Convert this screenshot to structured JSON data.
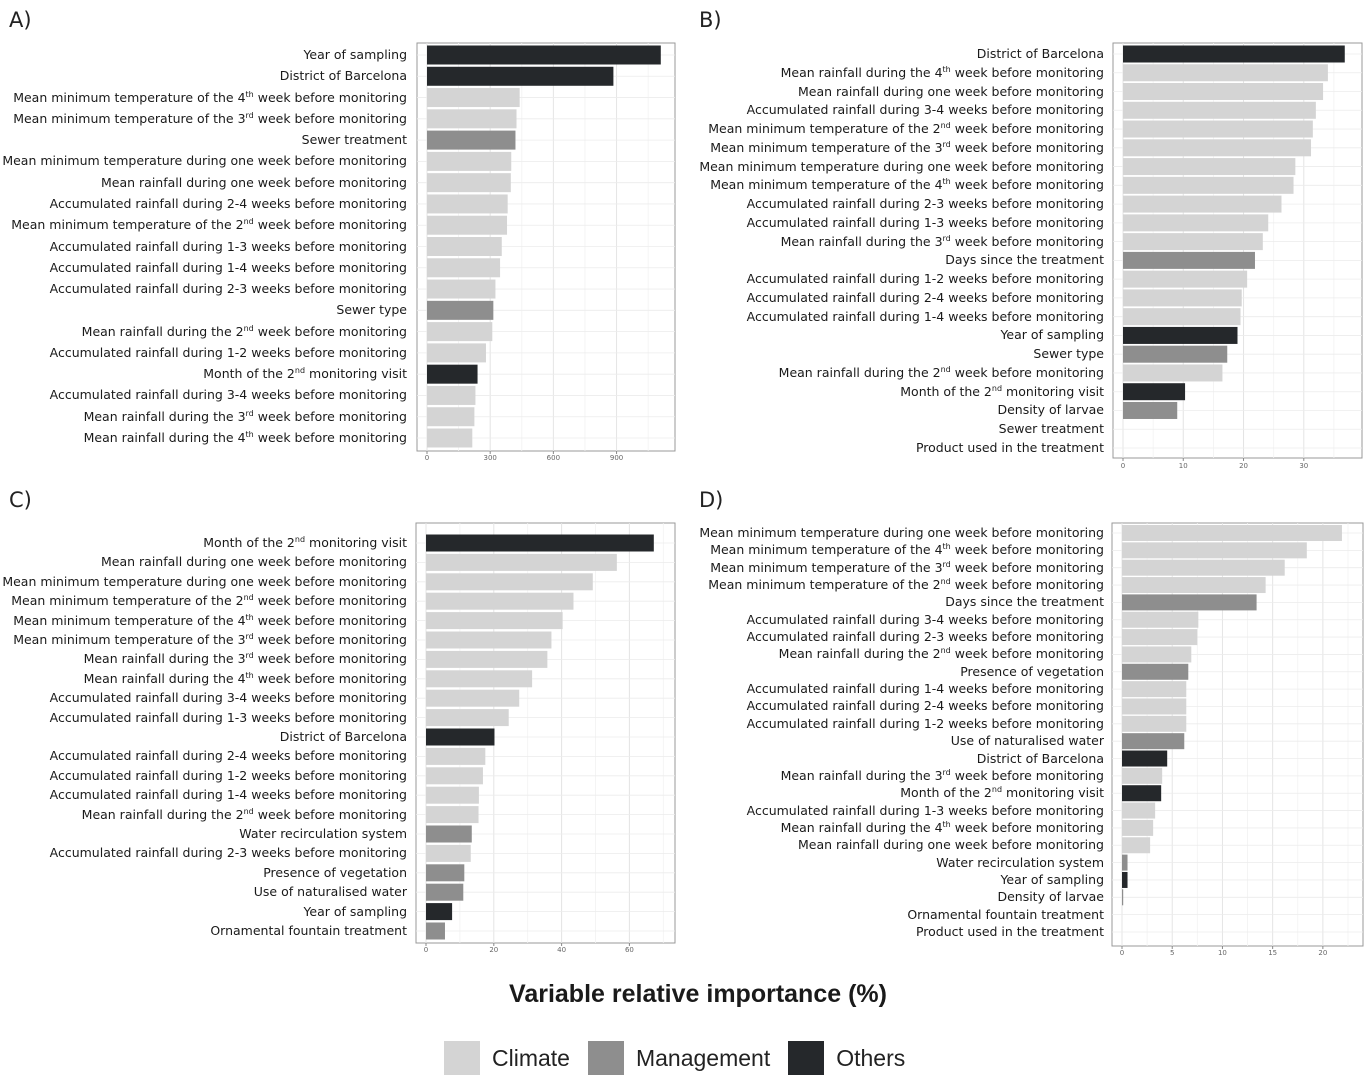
{
  "panels": [
    "A)",
    "B)",
    "C)",
    "D)"
  ],
  "xlabel": "Variable relative importance (%)",
  "legend": [
    {
      "label": "Climate",
      "color": "#d4d4d4"
    },
    {
      "label": "Management",
      "color": "#8e8e8e"
    },
    {
      "label": "Others",
      "color": "#25282b"
    }
  ],
  "chart_data": [
    {
      "type": "bar",
      "orientation": "horizontal",
      "panel": "A)",
      "xlim": [
        0,
        1130
      ],
      "xticks": [
        0,
        300,
        600,
        900
      ],
      "grid": true,
      "bars": [
        {
          "label": "Year of sampling",
          "value": 1110,
          "group": "Others"
        },
        {
          "label": "District of Barcelona",
          "value": 885,
          "group": "Others"
        },
        {
          "label": "Mean minimum temperature of the 4<sup>th</sup> week before monitoring",
          "value": 440,
          "group": "Climate"
        },
        {
          "label": "Mean minimum temperature of the 3<sup>rd</sup> week before monitoring",
          "value": 425,
          "group": "Climate"
        },
        {
          "label": "Sewer treatment",
          "value": 420,
          "group": "Management"
        },
        {
          "label": "Mean minimum temperature during one week before monitoring",
          "value": 400,
          "group": "Climate"
        },
        {
          "label": "Mean rainfall during one week before monitoring",
          "value": 398,
          "group": "Climate"
        },
        {
          "label": "Accumulated rainfall during 2-4 weeks before monitoring",
          "value": 383,
          "group": "Climate"
        },
        {
          "label": "Mean minimum temperature of the 2<sup>nd</sup> week before monitoring",
          "value": 380,
          "group": "Climate"
        },
        {
          "label": "Accumulated rainfall during 1-3 weeks before monitoring",
          "value": 355,
          "group": "Climate"
        },
        {
          "label": "Accumulated rainfall during 1-4 weeks before monitoring",
          "value": 347,
          "group": "Climate"
        },
        {
          "label": "Accumulated rainfall during 2-3 weeks before monitoring",
          "value": 325,
          "group": "Climate"
        },
        {
          "label": "Sewer type",
          "value": 315,
          "group": "Management"
        },
        {
          "label": "Mean rainfall during the 2<sup>nd</sup> week before monitoring",
          "value": 310,
          "group": "Climate"
        },
        {
          "label": "Accumulated rainfall during 1-2 weeks before monitoring",
          "value": 280,
          "group": "Climate"
        },
        {
          "label": "Month of the 2<sup>nd</sup> monitoring visit",
          "value": 240,
          "group": "Others"
        },
        {
          "label": "Accumulated rainfall during 3-4 weeks before monitoring",
          "value": 230,
          "group": "Climate"
        },
        {
          "label": "Mean rainfall during the 3<sup>rd</sup> week before monitoring",
          "value": 225,
          "group": "Climate"
        },
        {
          "label": "Mean rainfall during the 4<sup>th</sup> week before monitoring",
          "value": 215,
          "group": "Climate"
        }
      ]
    },
    {
      "type": "bar",
      "orientation": "horizontal",
      "panel": "B)",
      "xlim": [
        0,
        38
      ],
      "xticks": [
        0,
        10,
        20,
        30
      ],
      "grid": true,
      "bars": [
        {
          "label": "District of Barcelona",
          "value": 36.8,
          "group": "Others"
        },
        {
          "label": "Mean rainfall during the 4<sup>th</sup> week before monitoring",
          "value": 34.0,
          "group": "Climate"
        },
        {
          "label": "Mean rainfall during one week before monitoring",
          "value": 33.2,
          "group": "Climate"
        },
        {
          "label": "Accumulated rainfall during 3-4 weeks before monitoring",
          "value": 32.0,
          "group": "Climate"
        },
        {
          "label": "Mean minimum temperature of the 2<sup>nd</sup> week before monitoring",
          "value": 31.5,
          "group": "Climate"
        },
        {
          "label": "Mean minimum temperature of the 3<sup>rd</sup> week before monitoring",
          "value": 31.2,
          "group": "Climate"
        },
        {
          "label": "Mean minimum temperature during one week before monitoring",
          "value": 28.6,
          "group": "Climate"
        },
        {
          "label": "Mean minimum temperature of the 4<sup>th</sup> week before monitoring",
          "value": 28.3,
          "group": "Climate"
        },
        {
          "label": "Accumulated rainfall during 2-3 weeks before monitoring",
          "value": 26.3,
          "group": "Climate"
        },
        {
          "label": "Accumulated rainfall during 1-3 weeks before monitoring",
          "value": 24.1,
          "group": "Climate"
        },
        {
          "label": "Mean rainfall during the 3<sup>rd</sup> week before monitoring",
          "value": 23.2,
          "group": "Climate"
        },
        {
          "label": "Days since the treatment",
          "value": 21.9,
          "group": "Management"
        },
        {
          "label": "Accumulated rainfall during 1-2 weeks before monitoring",
          "value": 20.6,
          "group": "Climate"
        },
        {
          "label": "Accumulated rainfall during 2-4 weeks before monitoring",
          "value": 19.7,
          "group": "Climate"
        },
        {
          "label": "Accumulated rainfall during 1-4 weeks before monitoring",
          "value": 19.5,
          "group": "Climate"
        },
        {
          "label": "Year of sampling",
          "value": 19.0,
          "group": "Others"
        },
        {
          "label": "Sewer type",
          "value": 17.3,
          "group": "Management"
        },
        {
          "label": "Mean rainfall during the 2<sup>nd</sup> week before monitoring",
          "value": 16.5,
          "group": "Climate"
        },
        {
          "label": "Month of the 2<sup>nd</sup> monitoring visit",
          "value": 10.3,
          "group": "Others"
        },
        {
          "label": "Density of larvae",
          "value": 9.0,
          "group": "Management"
        },
        {
          "label": "Sewer treatment",
          "value": 0,
          "group": "Management"
        },
        {
          "label": "Product used in the treatment",
          "value": 0,
          "group": "Management"
        }
      ]
    },
    {
      "type": "bar",
      "orientation": "horizontal",
      "panel": "C)",
      "xlim": [
        0,
        70.5
      ],
      "xticks": [
        0,
        20,
        40,
        60
      ],
      "grid": true,
      "bars": [
        {
          "label": "Month of the 2<sup>nd</sup> monitoring visit",
          "value": 67.2,
          "group": "Others"
        },
        {
          "label": "Mean rainfall during one week before monitoring",
          "value": 56.3,
          "group": "Climate"
        },
        {
          "label": "Mean minimum temperature during one week before monitoring",
          "value": 49.2,
          "group": "Climate"
        },
        {
          "label": "Mean minimum temperature of the 2<sup>nd</sup> week before monitoring",
          "value": 43.5,
          "group": "Climate"
        },
        {
          "label": "Mean minimum temperature of the 4<sup>th</sup> week before monitoring",
          "value": 40.3,
          "group": "Climate"
        },
        {
          "label": "Mean minimum temperature of the 3<sup>rd</sup> week before monitoring",
          "value": 37.0,
          "group": "Climate"
        },
        {
          "label": "Mean rainfall during the 3<sup>rd</sup> week before monitoring",
          "value": 35.8,
          "group": "Climate"
        },
        {
          "label": "Mean rainfall during the 4<sup>th</sup> week before monitoring",
          "value": 31.3,
          "group": "Climate"
        },
        {
          "label": "Accumulated rainfall during 3-4 weeks before monitoring",
          "value": 27.5,
          "group": "Climate"
        },
        {
          "label": "Accumulated rainfall during 1-3 weeks before monitoring",
          "value": 24.4,
          "group": "Climate"
        },
        {
          "label": "District of Barcelona",
          "value": 20.2,
          "group": "Others"
        },
        {
          "label": "Accumulated rainfall during 2-4 weeks before monitoring",
          "value": 17.5,
          "group": "Climate"
        },
        {
          "label": "Accumulated rainfall during 1-2 weeks before monitoring",
          "value": 16.8,
          "group": "Climate"
        },
        {
          "label": "Accumulated rainfall during 1-4 weeks before monitoring",
          "value": 15.6,
          "group": "Climate"
        },
        {
          "label": "Mean rainfall during the 2<sup>nd</sup> week before monitoring",
          "value": 15.5,
          "group": "Climate"
        },
        {
          "label": "Water recirculation system",
          "value": 13.5,
          "group": "Management"
        },
        {
          "label": "Accumulated rainfall during 2-3 weeks before monitoring",
          "value": 13.2,
          "group": "Climate"
        },
        {
          "label": "Presence of vegetation",
          "value": 11.3,
          "group": "Management"
        },
        {
          "label": "Use of naturalised water",
          "value": 11.0,
          "group": "Management"
        },
        {
          "label": "Year of sampling",
          "value": 7.7,
          "group": "Others"
        },
        {
          "label": "Ornamental fountain treatment",
          "value": 5.6,
          "group": "Management"
        }
      ]
    },
    {
      "type": "bar",
      "orientation": "horizontal",
      "panel": "D)",
      "xlim": [
        0,
        23
      ],
      "xticks": [
        0,
        5,
        10,
        15,
        20
      ],
      "grid": true,
      "bars": [
        {
          "label": "Mean minimum temperature during one week before monitoring",
          "value": 21.9,
          "group": "Climate"
        },
        {
          "label": "Mean minimum temperature of the 4<sup>th</sup> week before monitoring",
          "value": 18.4,
          "group": "Climate"
        },
        {
          "label": "Mean minimum temperature of the 3<sup>rd</sup> week before monitoring",
          "value": 16.2,
          "group": "Climate"
        },
        {
          "label": "Mean minimum temperature of the 2<sup>nd</sup> week before monitoring",
          "value": 14.3,
          "group": "Climate"
        },
        {
          "label": "Days since the treatment",
          "value": 13.4,
          "group": "Management"
        },
        {
          "label": "Accumulated rainfall during 3-4 weeks before monitoring",
          "value": 7.6,
          "group": "Climate"
        },
        {
          "label": "Accumulated rainfall during 2-3 weeks before monitoring",
          "value": 7.5,
          "group": "Climate"
        },
        {
          "label": "Mean rainfall during the 2<sup>nd</sup> week before monitoring",
          "value": 6.9,
          "group": "Climate"
        },
        {
          "label": "Presence of vegetation",
          "value": 6.6,
          "group": "Management"
        },
        {
          "label": "Accumulated rainfall during 1-4 weeks before monitoring",
          "value": 6.4,
          "group": "Climate"
        },
        {
          "label": "Accumulated rainfall during 2-4 weeks before monitoring",
          "value": 6.4,
          "group": "Climate"
        },
        {
          "label": "Accumulated rainfall during 1-2 weeks before monitoring",
          "value": 6.4,
          "group": "Climate"
        },
        {
          "label": "Use of naturalised water",
          "value": 6.2,
          "group": "Management"
        },
        {
          "label": "District of Barcelona",
          "value": 4.5,
          "group": "Others"
        },
        {
          "label": "Mean rainfall during the 3<sup>rd</sup> week before monitoring",
          "value": 4.0,
          "group": "Climate"
        },
        {
          "label": "Month of the 2<sup>nd</sup> monitoring visit",
          "value": 3.9,
          "group": "Others"
        },
        {
          "label": "Accumulated rainfall during 1-3 weeks before monitoring",
          "value": 3.3,
          "group": "Climate"
        },
        {
          "label": "Mean rainfall during the 4<sup>th</sup> week before monitoring",
          "value": 3.1,
          "group": "Climate"
        },
        {
          "label": "Mean rainfall during one week before monitoring",
          "value": 2.8,
          "group": "Climate"
        },
        {
          "label": "Water recirculation system",
          "value": 0.55,
          "group": "Management"
        },
        {
          "label": "Year of sampling",
          "value": 0.55,
          "group": "Others"
        },
        {
          "label": "Density of larvae",
          "value": 0.12,
          "group": "Management"
        },
        {
          "label": "Ornamental fountain treatment",
          "value": 0,
          "group": "Management"
        },
        {
          "label": "Product used in the treatment",
          "value": 0,
          "group": "Management"
        }
      ]
    }
  ]
}
